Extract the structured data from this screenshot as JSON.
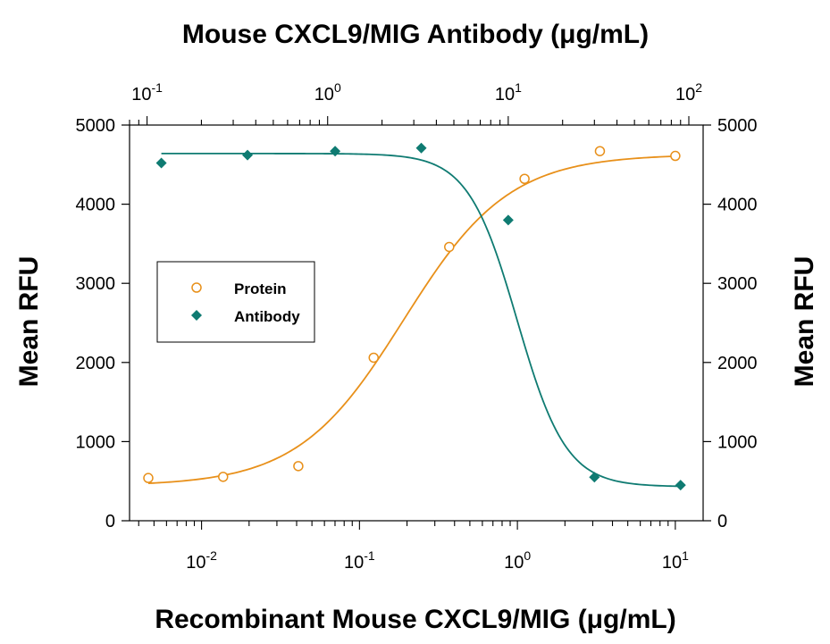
{
  "chart_data": {
    "type": "scatter",
    "title": "Mouse CXCL9/MIG Antibody (μg/mL)",
    "xlabel": "Recombinant Mouse CXCL9/MIG (μg/mL)",
    "ylabel_left": "Mean RFU",
    "ylabel_right": "Mean RFU",
    "x_scale": "log",
    "x_bottom_lim": [
      0.0035,
      15
    ],
    "x_top_lim": [
      0.08,
      120
    ],
    "ylim": [
      0,
      5000
    ],
    "y_ticks": [
      "0",
      "1000",
      "2000",
      "3000",
      "4000",
      "5000"
    ],
    "x_bottom_ticks": [
      {
        "value": 0.01,
        "base": "10",
        "exp": "-2"
      },
      {
        "value": 0.1,
        "base": "10",
        "exp": "-1"
      },
      {
        "value": 1,
        "base": "10",
        "exp": "0"
      },
      {
        "value": 10,
        "base": "10",
        "exp": "1"
      }
    ],
    "x_top_ticks": [
      {
        "value": 0.1,
        "base": "10",
        "exp": "-1"
      },
      {
        "value": 1,
        "base": "10",
        "exp": "0"
      },
      {
        "value": 10,
        "base": "10",
        "exp": "1"
      },
      {
        "value": 100,
        "base": "10",
        "exp": "2"
      }
    ],
    "grid": false,
    "legend_position": "middle-left",
    "series": [
      {
        "name": "Protein",
        "x_axis": "bottom",
        "marker": "open-circle",
        "color": "#E8901A",
        "points": [
          {
            "x": 0.0046,
            "y": 540
          },
          {
            "x": 0.0137,
            "y": 555
          },
          {
            "x": 0.041,
            "y": 690
          },
          {
            "x": 0.123,
            "y": 2060
          },
          {
            "x": 0.37,
            "y": 3460
          },
          {
            "x": 1.11,
            "y": 4320
          },
          {
            "x": 3.33,
            "y": 4670
          },
          {
            "x": 10,
            "y": 4610
          }
        ],
        "fit": {
          "bottom": 440,
          "top": 4630,
          "ec50": 0.19,
          "hill": 1.3
        }
      },
      {
        "name": "Antibody",
        "x_axis": "top",
        "marker": "filled-diamond",
        "color": "#0F7B72",
        "points": [
          {
            "x": 0.12,
            "y": 4520
          },
          {
            "x": 0.36,
            "y": 4620
          },
          {
            "x": 1.1,
            "y": 4670
          },
          {
            "x": 3.3,
            "y": 4710
          },
          {
            "x": 10,
            "y": 3800
          },
          {
            "x": 30,
            "y": 550
          },
          {
            "x": 90,
            "y": 450
          }
        ],
        "fit": {
          "bottom": 430,
          "top": 4640,
          "ec50": 11.2,
          "hill": -3.2
        }
      }
    ]
  }
}
